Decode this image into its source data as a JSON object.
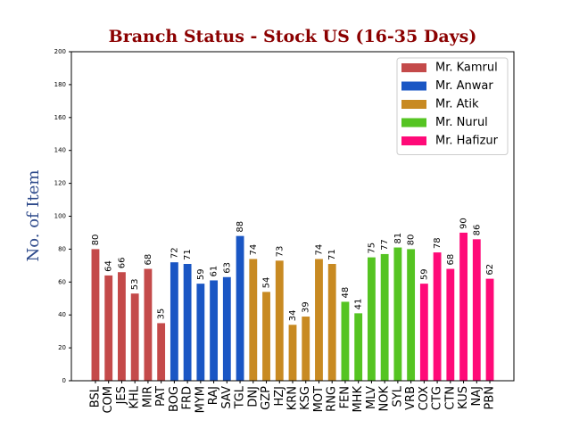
{
  "chart_data": {
    "type": "bar",
    "title": "Branch Status - Stock US (16-35 Days)",
    "y_label": "No. of Item",
    "categories": [
      "BSL",
      "COM",
      "JES",
      "KHL",
      "MIR",
      "PAT",
      "BOG",
      "FRD",
      "MYM",
      "RAJ",
      "SAV",
      "TGL",
      "DNJ",
      "GZP",
      "HZJ",
      "KRN",
      "KSG",
      "MOT",
      "RNG",
      "FEN",
      "MHK",
      "MLV",
      "NOK",
      "SYL",
      "VRB",
      "COX",
      "CTG",
      "CTN",
      "KUS",
      "NAJ",
      "PBN"
    ],
    "series": [
      {
        "name": "Mr. Kamrul",
        "color": "#c44a4a",
        "values": [
          80,
          64,
          66,
          53,
          68,
          35,
          null,
          null,
          null,
          null,
          null,
          null,
          null,
          null,
          null,
          null,
          null,
          null,
          null,
          null,
          null,
          null,
          null,
          null,
          null,
          null,
          null,
          null,
          null,
          null,
          null
        ]
      },
      {
        "name": "Mr. Anwar",
        "color": "#1a56c4",
        "values": [
          null,
          null,
          null,
          null,
          null,
          null,
          72,
          71,
          59,
          61,
          63,
          88,
          null,
          null,
          null,
          null,
          null,
          null,
          null,
          null,
          null,
          null,
          null,
          null,
          null,
          null,
          null,
          null,
          null,
          null,
          null
        ]
      },
      {
        "name": "Mr. Atik",
        "color": "#c88a22",
        "values": [
          null,
          null,
          null,
          null,
          null,
          null,
          null,
          null,
          null,
          null,
          null,
          null,
          74,
          54,
          73,
          34,
          39,
          74,
          71,
          null,
          null,
          null,
          null,
          null,
          null,
          null,
          null,
          null,
          null,
          null,
          null
        ]
      },
      {
        "name": "Mr. Nurul",
        "color": "#55c422",
        "values": [
          null,
          null,
          null,
          null,
          null,
          null,
          null,
          null,
          null,
          null,
          null,
          null,
          null,
          null,
          null,
          null,
          null,
          null,
          null,
          48,
          41,
          75,
          77,
          81,
          80,
          null,
          null,
          null,
          null,
          null,
          null
        ]
      },
      {
        "name": "Mr. Hafizur",
        "color": "#ff0a78",
        "values": [
          null,
          null,
          null,
          null,
          null,
          null,
          null,
          null,
          null,
          null,
          null,
          null,
          null,
          null,
          null,
          null,
          null,
          null,
          null,
          null,
          null,
          null,
          null,
          null,
          null,
          59,
          78,
          68,
          90,
          86,
          62
        ]
      }
    ],
    "ylim": [
      0,
      200
    ],
    "yticks": [
      0,
      20,
      40,
      60,
      80,
      100,
      120,
      140,
      160,
      180,
      200
    ],
    "legend": "upper right"
  }
}
